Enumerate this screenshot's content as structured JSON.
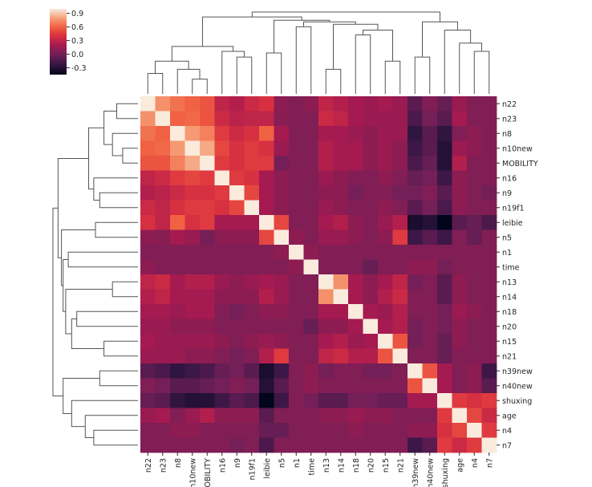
{
  "chart_data": {
    "type": "heatmap",
    "title": "",
    "xlabel": "",
    "ylabel": "",
    "labels": [
      "n22",
      "n23",
      "n8",
      "n10new",
      "MOBILITY",
      "n16",
      "n9",
      "n19f1",
      "leibie",
      "n5",
      "n1",
      "time",
      "n13",
      "n14",
      "n18",
      "n20",
      "n15",
      "n21",
      "n39new",
      "n40new",
      "shuxing",
      "age",
      "n4",
      "n7"
    ],
    "colorbar": {
      "ticks": [
        "0.9",
        "0.6",
        "0.3",
        "0.0",
        "-0.3"
      ],
      "vmin": -0.45,
      "vmax": 1.0,
      "colormap": "rocket"
    },
    "dendrograms": {
      "row": "left",
      "column": "top"
    },
    "grid": false,
    "values": [
      [
        1.0,
        0.75,
        0.65,
        0.6,
        0.55,
        0.3,
        0.25,
        0.35,
        0.4,
        0.1,
        0.05,
        0.1,
        0.3,
        0.25,
        0.2,
        0.15,
        0.2,
        0.15,
        -0.1,
        0.05,
        -0.05,
        0.15,
        0.05,
        0.05
      ],
      [
        0.75,
        1.0,
        0.6,
        0.62,
        0.55,
        0.35,
        0.28,
        0.3,
        0.3,
        0.08,
        0.05,
        0.05,
        0.35,
        0.3,
        0.2,
        0.15,
        0.15,
        0.15,
        -0.15,
        0.0,
        -0.1,
        0.2,
        0.05,
        0.05
      ],
      [
        0.65,
        0.6,
        1.0,
        0.78,
        0.7,
        0.45,
        0.35,
        0.4,
        0.6,
        0.2,
        0.05,
        0.05,
        0.2,
        0.2,
        0.15,
        0.1,
        0.15,
        0.15,
        -0.25,
        -0.1,
        -0.25,
        0.05,
        0.1,
        0.05
      ],
      [
        0.6,
        0.62,
        0.78,
        1.0,
        0.82,
        0.5,
        0.4,
        0.45,
        0.4,
        0.15,
        0.05,
        0.05,
        0.25,
        0.2,
        0.2,
        0.1,
        0.15,
        0.1,
        -0.2,
        -0.1,
        -0.3,
        0.15,
        0.1,
        0.05
      ],
      [
        0.55,
        0.55,
        0.7,
        0.82,
        1.0,
        0.45,
        0.4,
        0.45,
        0.45,
        0.0,
        0.05,
        0.05,
        0.25,
        0.2,
        0.2,
        0.1,
        0.15,
        0.1,
        -0.15,
        -0.05,
        -0.3,
        0.25,
        0.05,
        0.05
      ],
      [
        0.3,
        0.35,
        0.45,
        0.5,
        0.45,
        1.0,
        0.45,
        0.4,
        0.2,
        0.1,
        0.05,
        0.05,
        0.15,
        0.1,
        0.05,
        0.05,
        0.1,
        0.05,
        -0.05,
        0.0,
        -0.2,
        0.1,
        0.05,
        0.05
      ],
      [
        0.25,
        0.28,
        0.35,
        0.4,
        0.4,
        0.45,
        1.0,
        0.5,
        0.2,
        0.1,
        0.05,
        0.05,
        0.1,
        0.1,
        0.0,
        0.05,
        0.05,
        0.0,
        0.0,
        0.05,
        -0.1,
        0.1,
        0.05,
        0.0
      ],
      [
        0.35,
        0.3,
        0.4,
        0.45,
        0.45,
        0.4,
        0.5,
        1.0,
        0.2,
        0.1,
        0.05,
        0.05,
        0.15,
        0.1,
        0.05,
        0.05,
        0.1,
        0.05,
        -0.1,
        0.0,
        -0.15,
        0.1,
        0.05,
        0.05
      ],
      [
        0.4,
        0.3,
        0.6,
        0.4,
        0.45,
        0.2,
        0.2,
        0.2,
        1.0,
        0.5,
        0.05,
        0.05,
        0.2,
        0.25,
        0.1,
        0.05,
        0.15,
        0.25,
        -0.35,
        -0.3,
        -0.45,
        -0.1,
        -0.05,
        -0.15
      ],
      [
        0.1,
        0.08,
        0.2,
        0.15,
        0.0,
        0.1,
        0.1,
        0.1,
        0.5,
        1.0,
        0.1,
        0.05,
        0.15,
        0.15,
        0.1,
        0.05,
        0.1,
        0.45,
        -0.2,
        -0.1,
        -0.2,
        0.05,
        -0.05,
        0.05
      ],
      [
        0.05,
        0.05,
        0.05,
        0.05,
        0.05,
        0.05,
        0.05,
        0.05,
        0.05,
        0.1,
        1.0,
        0.1,
        0.05,
        0.05,
        0.05,
        0.05,
        0.05,
        0.05,
        0.05,
        0.05,
        0.05,
        0.05,
        0.05,
        0.05
      ],
      [
        0.1,
        0.05,
        0.05,
        0.05,
        0.05,
        0.05,
        0.05,
        0.05,
        0.05,
        0.05,
        0.1,
        1.0,
        0.05,
        0.05,
        0.05,
        -0.05,
        0.05,
        0.05,
        0.1,
        0.1,
        0.0,
        0.05,
        0.05,
        0.05
      ],
      [
        0.3,
        0.35,
        0.2,
        0.25,
        0.25,
        0.15,
        0.1,
        0.15,
        0.2,
        0.15,
        0.05,
        0.05,
        1.0,
        0.75,
        0.2,
        0.1,
        0.2,
        0.3,
        0.0,
        0.05,
        -0.1,
        0.1,
        0.05,
        0.05
      ],
      [
        0.25,
        0.3,
        0.2,
        0.2,
        0.2,
        0.1,
        0.1,
        0.1,
        0.25,
        0.15,
        0.05,
        0.05,
        0.75,
        1.0,
        0.2,
        0.1,
        0.25,
        0.35,
        0.05,
        0.05,
        -0.1,
        0.1,
        0.05,
        0.05
      ],
      [
        0.2,
        0.2,
        0.15,
        0.2,
        0.2,
        0.05,
        0.0,
        0.05,
        0.1,
        0.1,
        0.05,
        0.05,
        0.2,
        0.2,
        1.0,
        0.2,
        0.15,
        0.25,
        0.05,
        0.05,
        0.0,
        0.15,
        0.1,
        0.05
      ],
      [
        0.15,
        0.15,
        0.1,
        0.1,
        0.1,
        0.05,
        0.05,
        0.05,
        0.05,
        0.05,
        0.05,
        -0.05,
        0.1,
        0.1,
        0.2,
        1.0,
        0.2,
        0.25,
        0.0,
        0.05,
        0.0,
        0.1,
        0.05,
        0.05
      ],
      [
        0.2,
        0.15,
        0.15,
        0.15,
        0.15,
        0.1,
        0.05,
        0.1,
        0.15,
        0.1,
        0.05,
        0.05,
        0.2,
        0.25,
        0.15,
        0.2,
        1.0,
        0.55,
        0.0,
        0.05,
        -0.05,
        0.1,
        0.05,
        0.05
      ],
      [
        0.15,
        0.15,
        0.15,
        0.1,
        0.1,
        0.05,
        0.0,
        0.05,
        0.25,
        0.45,
        0.05,
        0.05,
        0.3,
        0.35,
        0.25,
        0.25,
        0.55,
        1.0,
        0.05,
        0.05,
        -0.05,
        0.05,
        0.05,
        0.05
      ],
      [
        -0.1,
        -0.15,
        -0.25,
        -0.2,
        -0.15,
        -0.05,
        0.0,
        -0.1,
        -0.35,
        -0.2,
        0.05,
        0.1,
        0.0,
        0.05,
        0.05,
        0.0,
        0.0,
        0.05,
        1.0,
        0.55,
        0.2,
        0.05,
        0.1,
        -0.2
      ],
      [
        0.05,
        0.0,
        -0.1,
        -0.1,
        -0.05,
        0.0,
        0.05,
        0.0,
        -0.3,
        -0.1,
        0.05,
        0.1,
        0.05,
        0.05,
        0.05,
        0.05,
        0.05,
        0.05,
        0.55,
        1.0,
        0.2,
        0.05,
        0.1,
        -0.1
      ],
      [
        -0.05,
        -0.1,
        -0.25,
        -0.3,
        -0.3,
        -0.2,
        -0.1,
        -0.15,
        -0.45,
        -0.2,
        0.05,
        0.0,
        -0.1,
        -0.1,
        0.0,
        0.0,
        -0.05,
        -0.05,
        0.2,
        0.2,
        1.0,
        0.45,
        0.4,
        0.45
      ],
      [
        0.15,
        0.2,
        0.05,
        0.15,
        0.25,
        0.1,
        0.1,
        0.1,
        -0.1,
        0.05,
        0.05,
        0.05,
        0.1,
        0.1,
        0.15,
        0.1,
        0.1,
        0.05,
        0.05,
        0.05,
        0.45,
        1.0,
        0.5,
        0.35
      ],
      [
        0.05,
        0.05,
        0.1,
        0.1,
        0.05,
        0.05,
        0.05,
        0.05,
        -0.05,
        -0.05,
        0.05,
        0.05,
        0.05,
        0.05,
        0.1,
        0.05,
        0.05,
        0.05,
        0.1,
        0.1,
        0.4,
        0.5,
        1.0,
        0.45
      ],
      [
        0.05,
        0.05,
        0.05,
        0.05,
        0.05,
        0.05,
        0.0,
        0.05,
        -0.15,
        0.05,
        0.05,
        0.05,
        0.05,
        0.05,
        0.05,
        0.05,
        0.05,
        0.05,
        -0.2,
        -0.1,
        0.45,
        0.35,
        0.45,
        1.0
      ]
    ]
  }
}
